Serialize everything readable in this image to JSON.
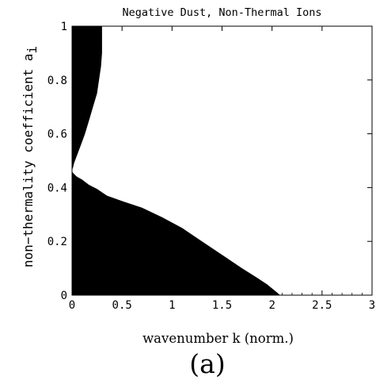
{
  "chart_data": {
    "type": "area",
    "title": "Negative Dust, Non-Thermal Ions",
    "xlabel": "wavenumber k (norm.)",
    "ylabel": "non−thermality coefficient a",
    "ylabel_subscript": "i",
    "panel_label": "(a)",
    "xlim": [
      0,
      3
    ],
    "ylim": [
      0,
      1
    ],
    "x_ticks": [
      0,
      0.5,
      1,
      1.5,
      2,
      2.5,
      3
    ],
    "x_tick_labels": [
      "0",
      "0.5",
      "1",
      "1.5",
      "2",
      "2.5",
      "3"
    ],
    "y_ticks": [
      0,
      0.2,
      0.4,
      0.6,
      0.8,
      1
    ],
    "y_tick_labels": [
      "0",
      "0.2",
      "0.4",
      "0.6",
      "0.8",
      "1"
    ],
    "grid": false,
    "fill_color": "#000000",
    "regions": [
      {
        "region": "lower",
        "x": [
          0,
          0.02,
          0.05,
          0.1,
          0.17,
          0.25,
          0.35,
          0.5,
          0.7,
          0.9,
          1.1,
          1.3,
          1.5,
          1.7,
          1.85,
          1.95,
          2.05,
          2.08,
          0
        ],
        "y": [
          0.46,
          0.45,
          0.44,
          0.43,
          0.41,
          0.395,
          0.37,
          0.35,
          0.325,
          0.29,
          0.25,
          0.2,
          0.15,
          0.1,
          0.065,
          0.04,
          0.01,
          0,
          0
        ]
      },
      {
        "region": "upper",
        "x": [
          0,
          0.3,
          0.3,
          0.3,
          0.29,
          0.27,
          0.25,
          0.21,
          0.17,
          0.13,
          0.09,
          0.06,
          0.035,
          0.02,
          0.01,
          0
        ],
        "y": [
          1,
          1,
          0.95,
          0.9,
          0.85,
          0.8,
          0.75,
          0.7,
          0.65,
          0.6,
          0.56,
          0.53,
          0.505,
          0.49,
          0.475,
          0.465
        ]
      }
    ]
  }
}
